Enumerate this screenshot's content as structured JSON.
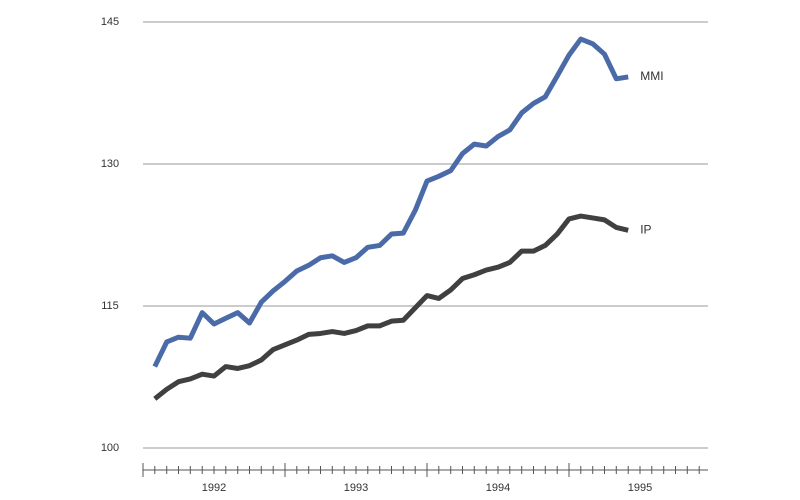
{
  "chart_data": {
    "type": "line",
    "x": [
      1992.083,
      1992.167,
      1992.25,
      1992.333,
      1992.417,
      1992.5,
      1992.583,
      1992.667,
      1992.75,
      1992.833,
      1992.917,
      1993,
      1993.083,
      1993.167,
      1993.25,
      1993.333,
      1993.417,
      1993.5,
      1993.583,
      1993.667,
      1993.75,
      1993.833,
      1993.917,
      1994,
      1994.083,
      1994.167,
      1994.25,
      1994.333,
      1994.417,
      1994.5,
      1994.583,
      1994.667,
      1994.75,
      1994.833,
      1994.917,
      1995,
      1995.083,
      1995.167,
      1995.25,
      1995.333,
      1995.417
    ],
    "series": [
      {
        "name": "MMI",
        "color": "#4a6aa8",
        "values": [
          108.6,
          111.2,
          111.7,
          111.6,
          114.3,
          113.1,
          113.7,
          114.3,
          113.2,
          115.4,
          116.6,
          117.6,
          118.7,
          119.3,
          120.1,
          120.3,
          119.6,
          120.1,
          121.2,
          121.4,
          122.6,
          122.7,
          125.1,
          128.2,
          128.7,
          129.3,
          131.1,
          132.1,
          131.9,
          132.9,
          133.6,
          135.4,
          136.4,
          137.1,
          139.3,
          141.5,
          143.2,
          142.7,
          141.6,
          139.0,
          139.2
        ]
      },
      {
        "name": "IP",
        "color": "#404040",
        "values": [
          105.2,
          106.2,
          107.0,
          107.3,
          107.8,
          107.6,
          108.6,
          108.4,
          108.7,
          109.3,
          110.4,
          110.9,
          111.4,
          112.0,
          112.1,
          112.3,
          112.1,
          112.4,
          112.9,
          112.9,
          113.4,
          113.5,
          114.8,
          116.1,
          115.8,
          116.7,
          117.9,
          118.3,
          118.8,
          119.1,
          119.6,
          120.8,
          120.8,
          121.4,
          122.6,
          124.2,
          124.5,
          124.3,
          124.1,
          123.3,
          123.0
        ]
      }
    ],
    "xlim": [
      1992,
      1996
    ],
    "xticks_major": [
      1992,
      1993,
      1994,
      1995
    ],
    "xticks": [
      1992.083,
      1992.167,
      1992.25,
      1992.333,
      1992.417,
      1992.5,
      1992.583,
      1992.667,
      1992.75,
      1992.833,
      1992.917,
      1993.083,
      1993.167,
      1993.25,
      1993.333,
      1993.417,
      1993.5,
      1993.583,
      1993.667,
      1993.75,
      1993.833,
      1993.917,
      1994.083,
      1994.167,
      1994.25,
      1994.333,
      1994.417,
      1994.5,
      1994.583,
      1994.667,
      1994.75,
      1994.833,
      1994.917,
      1995.083,
      1995.167,
      1995.25,
      1995.333,
      1995.417,
      1995.5,
      1995.583,
      1995.667,
      1995.75,
      1995.833,
      1995.917
    ],
    "xtick_labels": [
      {
        "value": 1992.5,
        "label": "1992"
      },
      {
        "value": 1993.5,
        "label": "1993"
      },
      {
        "value": 1994.5,
        "label": "1994"
      },
      {
        "value": 1995.5,
        "label": "1995"
      }
    ],
    "ylim": [
      100,
      145
    ],
    "yticks": [
      100,
      115,
      130,
      145
    ],
    "grid": true
  }
}
